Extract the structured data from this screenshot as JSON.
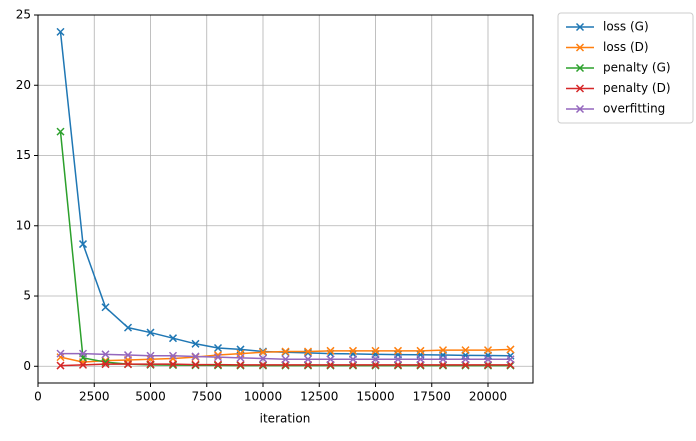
{
  "chart_data": {
    "type": "line",
    "x_label": "iteration",
    "x": [
      1000,
      2000,
      3000,
      4000,
      5000,
      6000,
      7000,
      8000,
      9000,
      10000,
      11000,
      12000,
      13000,
      14000,
      15000,
      16000,
      17000,
      18000,
      19000,
      20000,
      21000
    ],
    "series": [
      {
        "name": "loss (G)",
        "color": "#1f77b4",
        "values": [
          23.8,
          8.7,
          4.2,
          2.75,
          2.4,
          2.0,
          1.6,
          1.3,
          1.2,
          1.05,
          1.0,
          0.95,
          0.9,
          0.88,
          0.85,
          0.83,
          0.82,
          0.8,
          0.78,
          0.77,
          0.75
        ]
      },
      {
        "name": "loss (D)",
        "color": "#ff7f0e",
        "values": [
          0.65,
          0.3,
          0.4,
          0.45,
          0.5,
          0.55,
          0.65,
          0.8,
          0.9,
          1.0,
          1.05,
          1.05,
          1.1,
          1.1,
          1.1,
          1.1,
          1.1,
          1.15,
          1.15,
          1.15,
          1.2
        ]
      },
      {
        "name": "penalty (G)",
        "color": "#2ca02c",
        "values": [
          16.7,
          0.6,
          0.3,
          0.15,
          0.1,
          0.08,
          0.07,
          0.06,
          0.05,
          0.05,
          0.05,
          0.05,
          0.05,
          0.05,
          0.05,
          0.05,
          0.05,
          0.05,
          0.05,
          0.05,
          0.05
        ]
      },
      {
        "name": "penalty (D)",
        "color": "#d62728",
        "values": [
          0.05,
          0.1,
          0.15,
          0.15,
          0.15,
          0.15,
          0.12,
          0.12,
          0.1,
          0.1,
          0.1,
          0.1,
          0.1,
          0.1,
          0.1,
          0.1,
          0.1,
          0.1,
          0.1,
          0.1,
          0.1
        ]
      },
      {
        "name": "overfitting",
        "color": "#9467bd",
        "values": [
          0.9,
          0.9,
          0.85,
          0.8,
          0.75,
          0.75,
          0.7,
          0.65,
          0.6,
          0.55,
          0.5,
          0.5,
          0.5,
          0.5,
          0.5,
          0.5,
          0.5,
          0.5,
          0.5,
          0.5,
          0.5
        ]
      }
    ],
    "xlim": [
      0,
      22000
    ],
    "ylim": [
      -1.19,
      25.0
    ],
    "xticks": [
      0,
      2500,
      5000,
      7500,
      10000,
      12500,
      15000,
      17500,
      20000
    ],
    "yticks": [
      0,
      5,
      10,
      15,
      20,
      25
    ],
    "grid": true,
    "legend": "outside-right",
    "marker": "x"
  }
}
